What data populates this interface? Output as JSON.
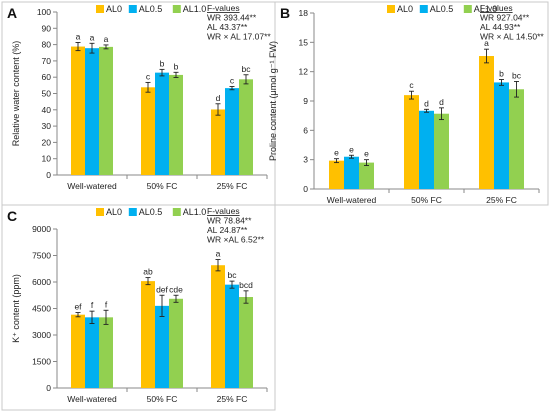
{
  "colors": {
    "AL0": "#FFC000",
    "AL0.5": "#00B0F0",
    "AL1.0": "#92D050",
    "axis": "#888888",
    "text": "#222222"
  },
  "chart_data": [
    {
      "type": "bar",
      "panel": "A",
      "ylabel": "Relative water content (%)",
      "categories": [
        "Well-watered",
        "50% FC",
        "25% FC"
      ],
      "ylim": [
        0,
        100
      ],
      "yticks": [
        0,
        10,
        20,
        30,
        40,
        50,
        60,
        70,
        80,
        90,
        100
      ],
      "ytick_labels": [
        "0",
        "10",
        "20",
        "30",
        "40",
        "50",
        "60",
        "70",
        "80",
        "90",
        "100"
      ],
      "legend": {
        "placement": "top-center"
      },
      "series": [
        {
          "name": "AL0",
          "values": [
            78.8,
            53.8,
            40.2
          ],
          "errors": [
            2.5,
            3.0,
            3.5
          ],
          "letters": [
            "a",
            "c",
            "d"
          ]
        },
        {
          "name": "AL0.5",
          "values": [
            77.8,
            62.8,
            53.3
          ],
          "errors": [
            3.0,
            2.0,
            1.0
          ],
          "letters": [
            "a",
            "b",
            "c"
          ]
        },
        {
          "name": "AL1.0",
          "values": [
            78.6,
            61.4,
            58.7
          ],
          "errors": [
            1.2,
            1.6,
            2.8
          ],
          "letters": [
            "a",
            "b",
            "bc"
          ]
        }
      ],
      "stats": {
        "title": "F-values",
        "lines": [
          "WR 393.44**",
          "AL 43.37**",
          "WR × AL 17.07**"
        ]
      }
    },
    {
      "type": "bar",
      "panel": "B",
      "ylabel": "Proline content (μmol g⁻¹ FW)",
      "categories": [
        "Well-watered",
        "50% FC",
        "25% FC"
      ],
      "ylim": [
        0,
        18
      ],
      "yticks": [
        0,
        3,
        6,
        9,
        12,
        15,
        18
      ],
      "ytick_labels": [
        "0",
        "3",
        "6",
        "9",
        "12",
        "15",
        "18"
      ],
      "legend": {
        "placement": "top-center"
      },
      "series": [
        {
          "name": "AL0",
          "values": [
            2.9,
            9.6,
            13.6
          ],
          "errors": [
            0.2,
            0.4,
            0.7
          ],
          "letters": [
            "e",
            "c",
            "a"
          ]
        },
        {
          "name": "AL0.5",
          "values": [
            3.3,
            8.0,
            10.9
          ],
          "errors": [
            0.15,
            0.15,
            0.3
          ],
          "letters": [
            "e",
            "d",
            "b"
          ]
        },
        {
          "name": "AL1.0",
          "values": [
            2.7,
            7.7,
            10.2
          ],
          "errors": [
            0.3,
            0.6,
            0.8
          ],
          "letters": [
            "e",
            "d",
            "bc"
          ]
        }
      ],
      "stats": {
        "title": "F-values",
        "lines": [
          "WR 927.04**",
          "AL 44.93**",
          "WR × AL 14.50**"
        ]
      }
    },
    {
      "type": "bar",
      "panel": "C",
      "ylabel": "K⁺ content (ppm)",
      "categories": [
        "Well-watered",
        "50% FC",
        "25% FC"
      ],
      "ylim": [
        0,
        9000
      ],
      "yticks": [
        0,
        1500,
        3000,
        4500,
        6000,
        7500,
        9000
      ],
      "ytick_labels": [
        "0",
        "1500",
        "3000",
        "4500",
        "6000",
        "7500",
        "9000"
      ],
      "legend": {
        "placement": "top-center"
      },
      "series": [
        {
          "name": "AL0",
          "values": [
            4150,
            6050,
            6950
          ],
          "errors": [
            120,
            200,
            320
          ],
          "letters": [
            "ef",
            "ab",
            "a"
          ]
        },
        {
          "name": "AL0.5",
          "values": [
            4000,
            4650,
            5850
          ],
          "errors": [
            350,
            600,
            200
          ],
          "letters": [
            "f",
            "def",
            "bc"
          ]
        },
        {
          "name": "AL1.0",
          "values": [
            4000,
            5050,
            5150
          ],
          "errors": [
            400,
            200,
            350
          ],
          "letters": [
            "f",
            "cde",
            "bcd"
          ]
        }
      ],
      "stats": {
        "title": "F-values",
        "lines": [
          "WR 78.84**",
          "AL 24.87**",
          "WR ×AL 6.52**"
        ]
      }
    }
  ]
}
